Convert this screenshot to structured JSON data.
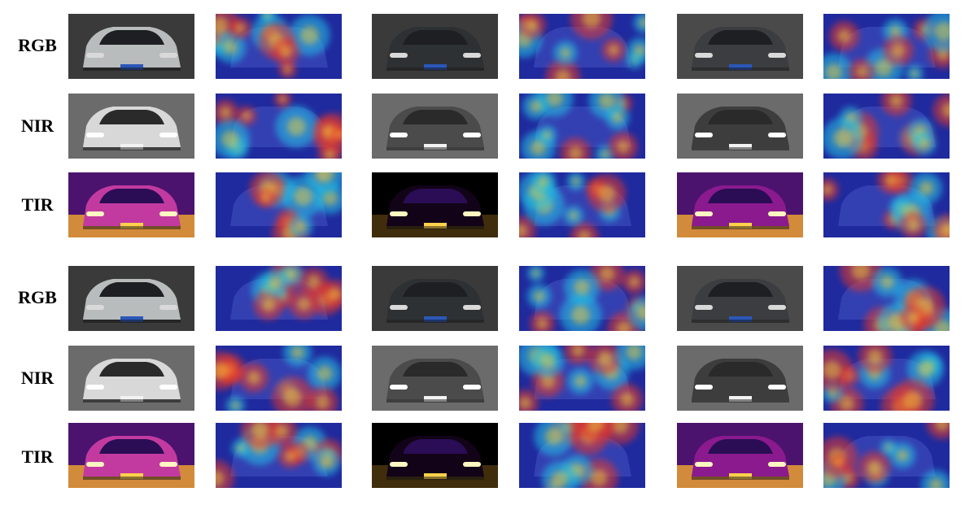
{
  "groups": [
    {
      "rows": [
        {
          "label": "RGB",
          "modality": "rgb"
        },
        {
          "label": "NIR",
          "modality": "nir"
        },
        {
          "label": "TIR",
          "modality": "tir"
        }
      ]
    },
    {
      "rows": [
        {
          "label": "RGB",
          "modality": "rgb"
        },
        {
          "label": "NIR",
          "modality": "nir"
        },
        {
          "label": "TIR",
          "modality": "tir"
        }
      ]
    }
  ],
  "columns": [
    {
      "kind": "image",
      "vehicle": 1
    },
    {
      "kind": "heatmap",
      "vehicle": 1
    },
    {
      "kind": "image",
      "vehicle": 2
    },
    {
      "kind": "heatmap",
      "vehicle": 2
    },
    {
      "kind": "image",
      "vehicle": 3
    },
    {
      "kind": "heatmap",
      "vehicle": 3
    }
  ],
  "colors": {
    "heat_low": "#1f2a9e",
    "heat_mid": "#22c3e6",
    "heat_high": "#e8372a",
    "tir_hot": "#ffb42a",
    "tir_cool": "#3b0f70"
  }
}
